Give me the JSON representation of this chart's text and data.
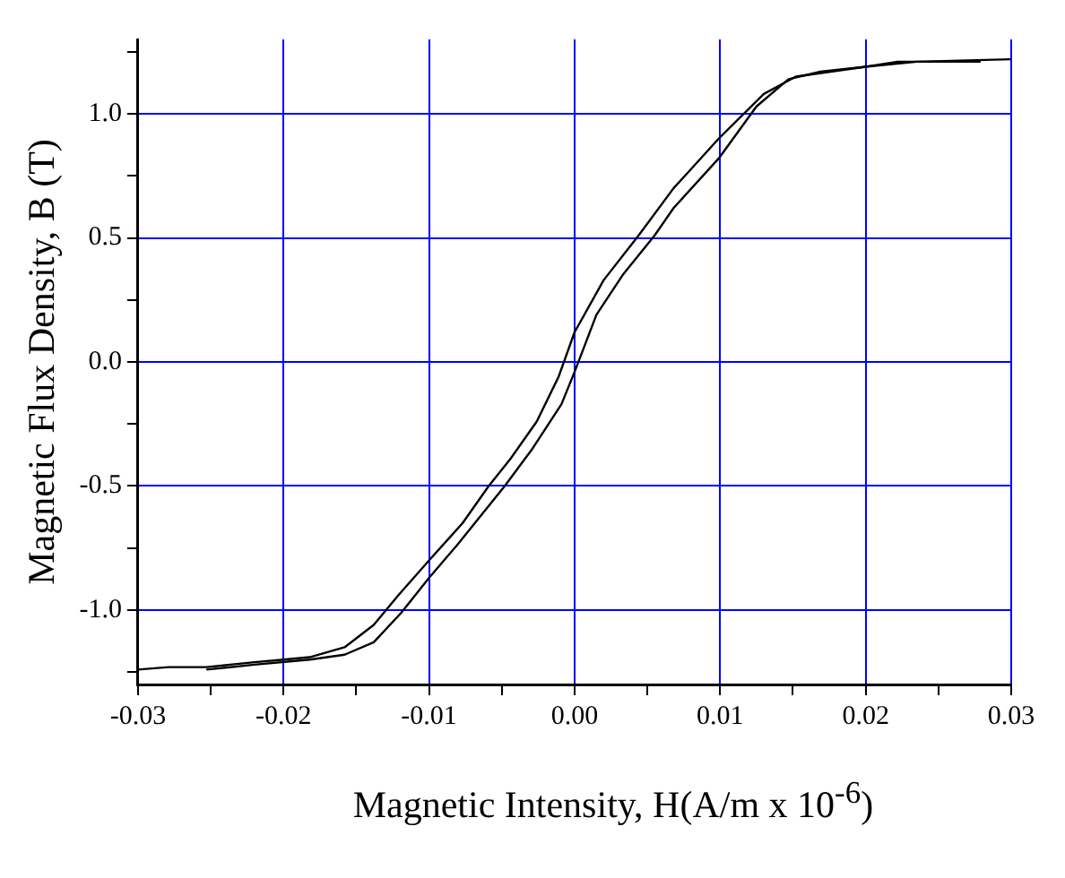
{
  "chart_data": {
    "type": "line",
    "xlabel": "Magnetic Intensity, H(A/m x 10$^{-6}$)",
    "ylabel": "Magnetic Flux Density, B (T)",
    "xlim": [
      -0.03,
      0.03
    ],
    "xticks": [
      -0.03,
      {
        "value": -0.025,
        "label": null
      },
      -0.02,
      {
        "value": -0.015,
        "label": null
      },
      -0.01,
      {
        "value": -0.005,
        "label": null
      },
      {
        "value": 0,
        "label": "0.00"
      },
      {
        "value": 0.005,
        "label": null
      },
      0.01,
      {
        "value": 0.015,
        "label": null
      },
      0.02,
      {
        "value": 0.025,
        "label": null
      },
      0.03
    ],
    "ylim": [
      -1.3,
      1.3
    ],
    "yticks": [
      {
        "value": -1.25,
        "label": null
      },
      {
        "value": -1,
        "label": "-1.0"
      },
      {
        "value": -0.75,
        "label": null
      },
      -0.5,
      {
        "value": -0.25,
        "label": null
      },
      {
        "value": 0,
        "label": "0.0"
      },
      {
        "value": 0.25,
        "label": null
      },
      0.5,
      {
        "value": 0.75,
        "label": null
      },
      {
        "value": 1,
        "label": "1.0"
      },
      {
        "value": 1.25,
        "label": null
      }
    ],
    "grid": true,
    "legend": false,
    "marker": "none",
    "line_style": "solid",
    "series": [
      {
        "color": "#000000",
        "x": [
          -0.03,
          -0.0279,
          -0.0253,
          -0.022,
          -0.02,
          -0.0182,
          -0.0158,
          -0.0138,
          -0.0121,
          -0.01,
          -0.0077,
          -0.0059,
          -0.0044,
          -0.0026,
          -0.0011,
          0,
          0.002,
          0.0044,
          0.0068,
          0.0099,
          0.013,
          0.0152,
          0.02,
          0.0222,
          0.0279
        ],
        "values": [
          -1.24,
          -1.23,
          -1.23,
          -1.21,
          -1.2,
          -1.19,
          -1.15,
          -1.06,
          -0.94,
          -0.8,
          -0.65,
          -0.5,
          -0.39,
          -0.24,
          -0.06,
          0.12,
          0.33,
          0.51,
          0.7,
          0.9,
          1.08,
          1.15,
          1.19,
          1.21,
          1.21
        ]
      },
      {
        "color": "#000000",
        "x": [
          -0.0253,
          -0.022,
          -0.0182,
          -0.0158,
          -0.0138,
          -0.0119,
          -0.01,
          -0.0081,
          -0.0048,
          -0.0029,
          -0.0009,
          0,
          0.0015,
          0.0033,
          0.0055,
          0.0068,
          0.0099,
          0.0125,
          0.0147,
          0.0169,
          0.02,
          0.0235,
          0.03
        ],
        "values": [
          -1.24,
          -1.22,
          -1.2,
          -1.18,
          -1.13,
          -1.01,
          -0.87,
          -0.74,
          -0.5,
          -0.35,
          -0.17,
          -0.04,
          0.19,
          0.35,
          0.51,
          0.62,
          0.82,
          1.03,
          1.14,
          1.17,
          1.19,
          1.21,
          1.22
        ]
      }
    ]
  }
}
